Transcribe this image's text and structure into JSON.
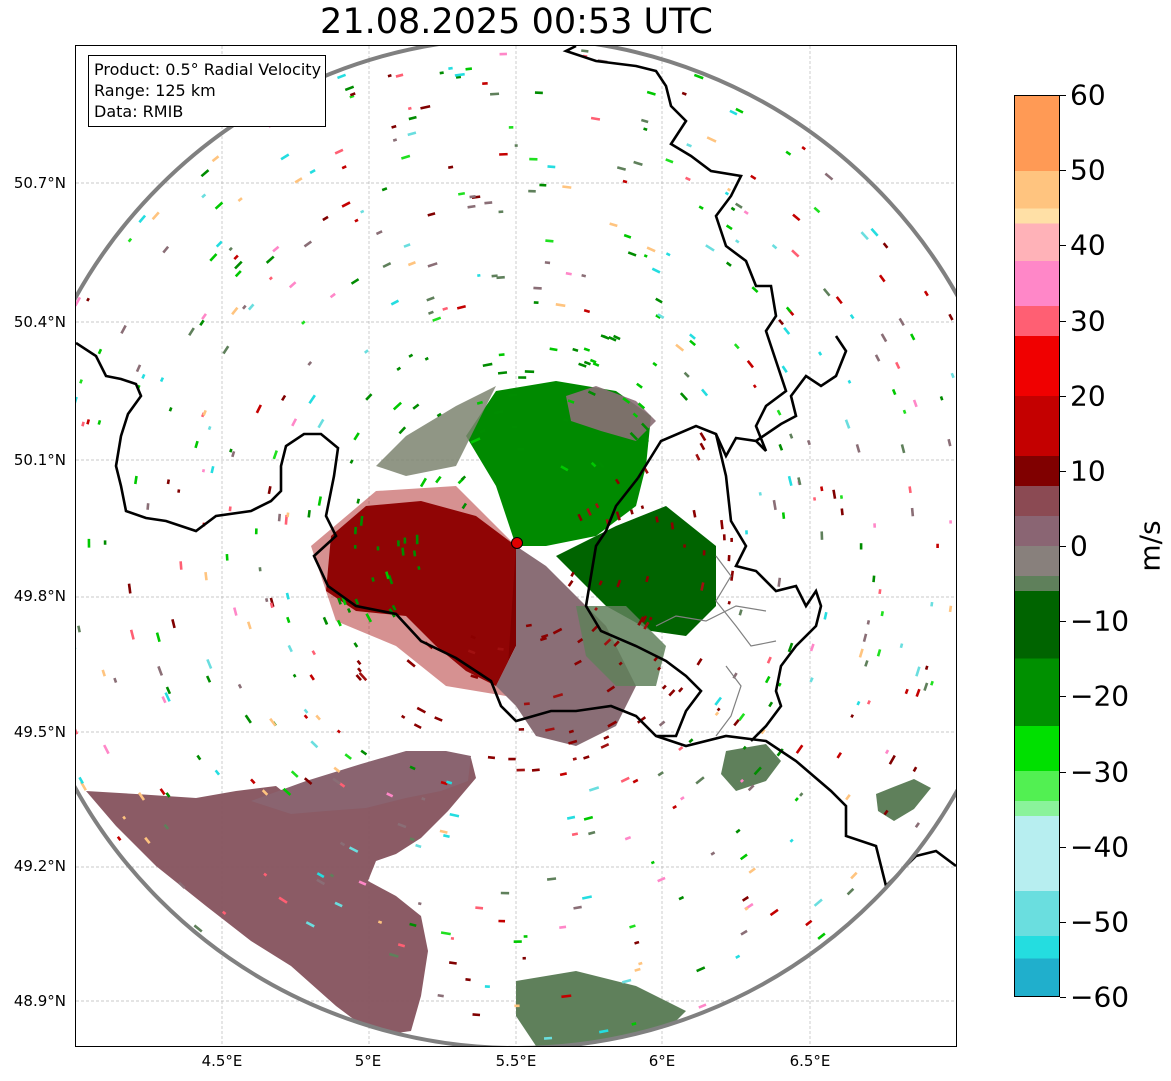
{
  "title": "21.08.2025 00:53 UTC",
  "info_box": {
    "product": "Product: 0.5° Radial Velocity",
    "range": "Range: 125 km",
    "data": "Data: RMIB"
  },
  "lat_labels": [
    "50.7°N",
    "50.4°N",
    "50.1°N",
    "49.8°N",
    "49.5°N",
    "49.2°N",
    "48.9°N"
  ],
  "lon_labels": [
    "4.5°E",
    "5°E",
    "5.5°E",
    "6°E",
    "6.5°E"
  ],
  "map_extent": {
    "lon": [
      4.0,
      7.0
    ],
    "lat": [
      48.8,
      51.0
    ]
  },
  "radar_site": {
    "lat": 49.92,
    "lon": 5.5,
    "range_km": 125
  },
  "colorbar": {
    "unit": "m/s",
    "ticks": [
      "60",
      "50",
      "40",
      "30",
      "20",
      "10",
      "0",
      "−10",
      "−20",
      "−30",
      "−40",
      "−50",
      "−60"
    ],
    "min": -60,
    "max": 60,
    "stops": [
      {
        "v": 60,
        "c": "#ff9a55"
      },
      {
        "v": 50,
        "c": "#ffc47f"
      },
      {
        "v": 45,
        "c": "#ffe0a6"
      },
      {
        "v": 43,
        "c": "#ffb2b8"
      },
      {
        "v": 38,
        "c": "#ff87c8"
      },
      {
        "v": 32,
        "c": "#ff5f73"
      },
      {
        "v": 28,
        "c": "#f00000"
      },
      {
        "v": 20,
        "c": "#c40000"
      },
      {
        "v": 12,
        "c": "#800000"
      },
      {
        "v": 8,
        "c": "#8b4a53"
      },
      {
        "v": 4,
        "c": "#8a6573"
      },
      {
        "v": 0,
        "c": "#88807c"
      },
      {
        "v": -4,
        "c": "#5f805b"
      },
      {
        "v": -6,
        "c": "#006400"
      },
      {
        "v": -15,
        "c": "#009000"
      },
      {
        "v": -24,
        "c": "#00e000"
      },
      {
        "v": -30,
        "c": "#52f052"
      },
      {
        "v": -34,
        "c": "#8af39b"
      },
      {
        "v": -36,
        "c": "#b7eef0"
      },
      {
        "v": -46,
        "c": "#6adedf"
      },
      {
        "v": -52,
        "c": "#24dde0"
      },
      {
        "v": -55,
        "c": "#20afcc"
      },
      {
        "v": -60,
        "c": "#1f78c8"
      }
    ]
  },
  "colors": {
    "approaching_green": "#008c00",
    "receding_red": "#8b0000",
    "near_zero": "#8a6e76",
    "border": "#000000",
    "range_ring": "#808080",
    "radar_marker": "#e00000"
  }
}
